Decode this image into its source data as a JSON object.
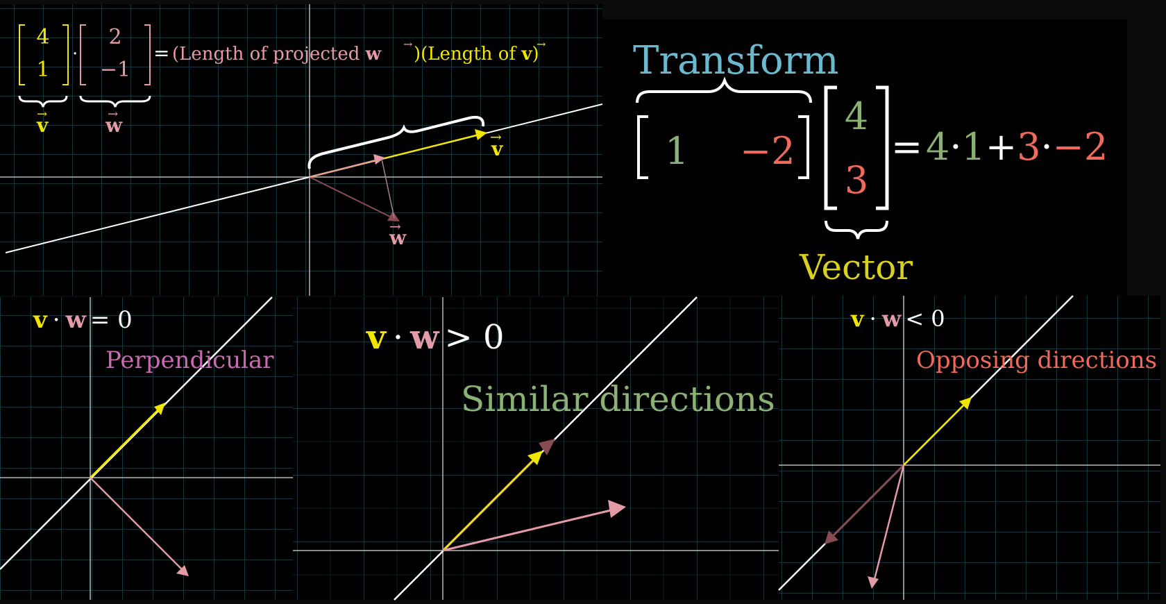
{
  "colors": {
    "yellow": "#f2e600",
    "pink": "#e59aa8",
    "green": "#8bb174",
    "red": "#ef6a5a",
    "blue": "#6ab9cf",
    "magenta": "#c86bb0",
    "darkred": "#8a4a52",
    "grid": "#16343d",
    "axis": "#b8b8b8",
    "white": "#ffffff"
  },
  "panel_top_left": {
    "v_vector": [
      "4",
      "1"
    ],
    "w_vector": [
      "2",
      "−1"
    ],
    "dot": "·",
    "equals": "=",
    "term1": "(Length of projected ",
    "term2": ")(Length of ",
    "term3": ")",
    "w_sym": "w",
    "v_sym": "v",
    "arrow_sym": "⃗",
    "label_v": "v",
    "label_w": "w",
    "label_v_arrow": "v",
    "label_w_arrow": "w"
  },
  "panel_top_right": {
    "transform_label": "Transform",
    "row_vector": [
      "1",
      "−2"
    ],
    "column_vector": [
      "4",
      "3"
    ],
    "equals": "=",
    "expr": [
      "4",
      "·",
      "1",
      "+",
      "3",
      "·",
      "−2"
    ],
    "vector_label": "Vector"
  },
  "panel_bottom_left": {
    "eq_v": "v",
    "eq_w": "w",
    "eq_op": "·",
    "eq_rel": "= 0",
    "caption": "Perpendicular"
  },
  "panel_bottom_middle": {
    "eq_v": "v",
    "eq_w": "w",
    "eq_op": "·",
    "eq_rel": "> 0",
    "caption": "Similar directions"
  },
  "panel_bottom_right": {
    "eq_v": "v",
    "eq_w": "w",
    "eq_op": "·",
    "eq_rel": "< 0",
    "caption": "Opposing directions"
  }
}
